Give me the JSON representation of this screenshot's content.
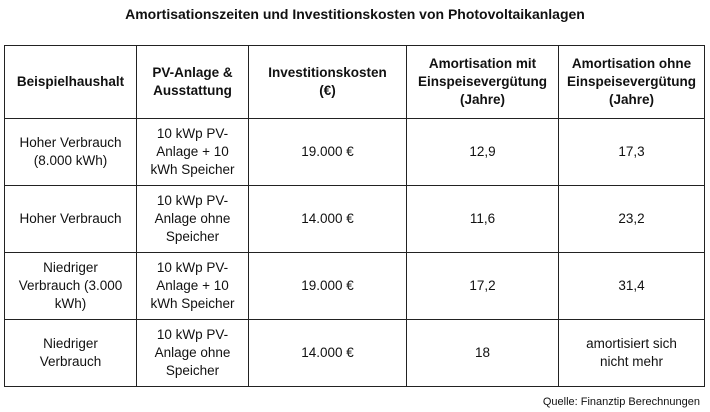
{
  "title": "Amortisationszeiten und Investitionskosten von Photovoltaikanlagen",
  "table": {
    "headers": [
      "Beispielhaushalt",
      "PV-Anlage &\nAusstattung",
      "Investitionskosten\n(€)",
      "Amortisation mit\nEinspeisevergütung\n(Jahre)",
      "Amortisation ohne\nEinspeisevergütung\n(Jahre)"
    ],
    "rows": [
      [
        "Hoher Verbrauch\n(8.000 kWh)",
        "10 kWp PV-\nAnlage + 10\nkWh Speicher",
        "19.000 €",
        "12,9",
        "17,3"
      ],
      [
        "Hoher Verbrauch",
        "10 kWp PV-\nAnlage ohne\nSpeicher",
        "14.000 €",
        "11,6",
        "23,2"
      ],
      [
        "Niedriger\nVerbrauch (3.000\nkWh)",
        "10 kWp PV-\nAnlage + 10\nkWh Speicher",
        "19.000 €",
        "17,2",
        "31,4"
      ],
      [
        "Niedriger\nVerbrauch",
        "10 kWp PV-\nAnlage ohne\nSpeicher",
        "14.000 €",
        "18",
        "amortisiert sich\nnicht mehr"
      ]
    ]
  },
  "source": "Quelle: Finanztip Berechnungen"
}
